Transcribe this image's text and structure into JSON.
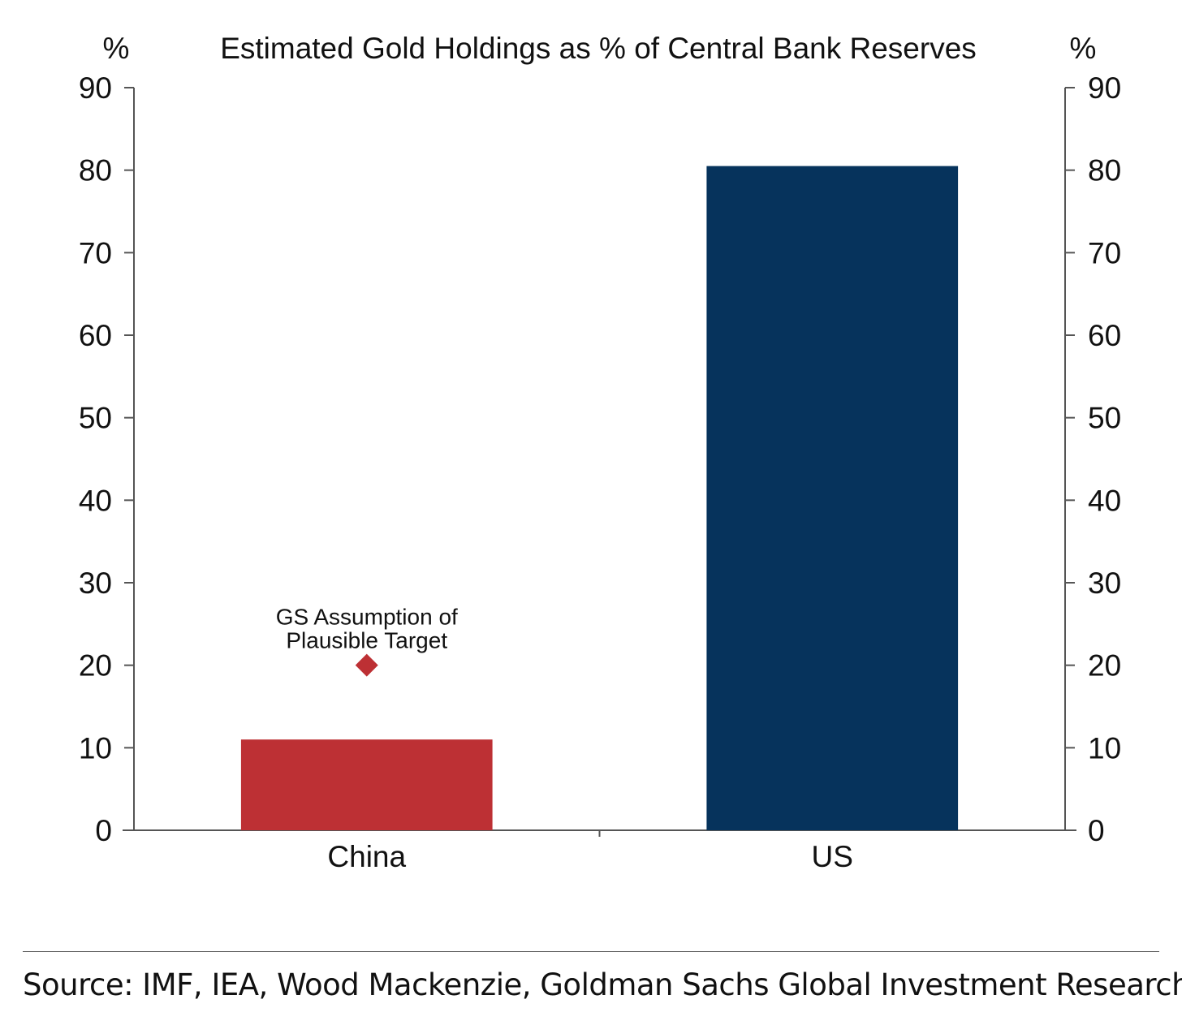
{
  "chart_data": {
    "type": "bar",
    "title": "Estimated Gold Holdings as % of Central Bank Reserves",
    "ylabel_left": "%",
    "ylabel_right": "%",
    "categories": [
      "China",
      "US"
    ],
    "values": [
      11,
      80.5
    ],
    "bar_colors": [
      "#bd3034",
      "#06335c"
    ],
    "ylim": [
      0,
      90
    ],
    "yticks": [
      0,
      10,
      20,
      30,
      40,
      50,
      60,
      70,
      80,
      90
    ],
    "grid": false,
    "annotation": {
      "category": "China",
      "value": 20,
      "marker": "diamond",
      "color": "#bd3034",
      "lines": [
        "GS Assumption of",
        "Plausible Target"
      ]
    }
  },
  "source": "Source: IMF, IEA, Wood Mackenzie, Goldman Sachs Global Investment Research"
}
